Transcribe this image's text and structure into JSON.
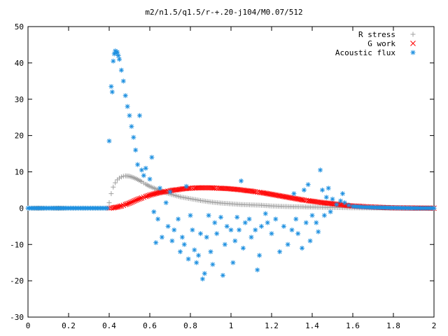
{
  "chart_data": {
    "type": "scatter",
    "title": "m2/n1.5/q1.5/r-+.20-j104/M0.07/512",
    "xlabel": "",
    "ylabel": "",
    "xlim": [
      0,
      2
    ],
    "ylim": [
      -30,
      50
    ],
    "x_ticks": [
      "0",
      "0.2",
      "0.4",
      "0.6",
      "0.8",
      "1",
      "1.2",
      "1.4",
      "1.6",
      "1.8",
      "2"
    ],
    "y_ticks": [
      "-30",
      "-20",
      "-10",
      "0",
      "10",
      "20",
      "30",
      "40",
      "50"
    ],
    "legend_position": "top-right",
    "grid": false,
    "series": [
      {
        "name": "R stress",
        "marker": "+",
        "color": "#a0a0a0",
        "points": [
          [
            0.0,
            0
          ],
          [
            0.1,
            0
          ],
          [
            0.2,
            0
          ],
          [
            0.3,
            0
          ],
          [
            0.39,
            0
          ],
          [
            0.4,
            1.5
          ],
          [
            0.41,
            4
          ],
          [
            0.42,
            5.8
          ],
          [
            0.43,
            7
          ],
          [
            0.44,
            7.8
          ],
          [
            0.45,
            8.3
          ],
          [
            0.46,
            8.6
          ],
          [
            0.47,
            8.8
          ],
          [
            0.48,
            8.9
          ],
          [
            0.5,
            8.8
          ],
          [
            0.52,
            8.4
          ],
          [
            0.54,
            7.9
          ],
          [
            0.56,
            7.3
          ],
          [
            0.58,
            6.6
          ],
          [
            0.6,
            6
          ],
          [
            0.63,
            5.3
          ],
          [
            0.66,
            4.6
          ],
          [
            0.7,
            3.9
          ],
          [
            0.75,
            3.1
          ],
          [
            0.8,
            2.6
          ],
          [
            0.85,
            2.1
          ],
          [
            0.9,
            1.7
          ],
          [
            0.95,
            1.4
          ],
          [
            1.0,
            1.2
          ],
          [
            1.05,
            1
          ],
          [
            1.1,
            0.9
          ],
          [
            1.15,
            0.8
          ],
          [
            1.2,
            0.6
          ],
          [
            1.25,
            0.5
          ],
          [
            1.3,
            0.4
          ],
          [
            1.35,
            0.35
          ],
          [
            1.4,
            0.3
          ],
          [
            1.45,
            0.25
          ],
          [
            1.5,
            0.2
          ],
          [
            1.55,
            0.15
          ],
          [
            1.6,
            0.1
          ],
          [
            1.7,
            0.05
          ],
          [
            1.8,
            0.02
          ],
          [
            1.9,
            0
          ],
          [
            2.0,
            0
          ]
        ]
      },
      {
        "name": "G work",
        "marker": "x",
        "color": "#ff0000",
        "points": [
          [
            0.4,
            0
          ],
          [
            0.42,
            0.1
          ],
          [
            0.44,
            0.3
          ],
          [
            0.46,
            0.6
          ],
          [
            0.48,
            1
          ],
          [
            0.5,
            1.4
          ],
          [
            0.52,
            1.9
          ],
          [
            0.54,
            2.4
          ],
          [
            0.56,
            2.8
          ],
          [
            0.58,
            3.2
          ],
          [
            0.6,
            3.6
          ],
          [
            0.62,
            3.9
          ],
          [
            0.64,
            4.2
          ],
          [
            0.66,
            4.4
          ],
          [
            0.68,
            4.6
          ],
          [
            0.7,
            4.8
          ],
          [
            0.72,
            5
          ],
          [
            0.74,
            5.1
          ],
          [
            0.76,
            5.3
          ],
          [
            0.78,
            5.4
          ],
          [
            0.8,
            5.5
          ],
          [
            0.82,
            5.55
          ],
          [
            0.84,
            5.6
          ],
          [
            0.86,
            5.6
          ],
          [
            0.88,
            5.6
          ],
          [
            0.9,
            5.6
          ],
          [
            0.92,
            5.55
          ],
          [
            0.94,
            5.5
          ],
          [
            0.96,
            5.45
          ],
          [
            0.98,
            5.4
          ],
          [
            1.0,
            5.3
          ],
          [
            1.02,
            5.2
          ],
          [
            1.04,
            5.1
          ],
          [
            1.06,
            4.95
          ],
          [
            1.08,
            4.8
          ],
          [
            1.1,
            4.7
          ],
          [
            1.12,
            4.5
          ],
          [
            1.14,
            4.35
          ],
          [
            1.16,
            4.2
          ],
          [
            1.18,
            4
          ],
          [
            1.2,
            3.8
          ],
          [
            1.22,
            3.6
          ],
          [
            1.24,
            3.4
          ],
          [
            1.26,
            3.2
          ],
          [
            1.28,
            3
          ],
          [
            1.3,
            2.8
          ],
          [
            1.32,
            2.6
          ],
          [
            1.34,
            2.4
          ],
          [
            1.36,
            2.2
          ],
          [
            1.38,
            2.05
          ],
          [
            1.4,
            1.9
          ],
          [
            1.42,
            1.75
          ],
          [
            1.44,
            1.6
          ],
          [
            1.46,
            1.45
          ],
          [
            1.48,
            1.35
          ],
          [
            1.5,
            1.2
          ],
          [
            1.52,
            1.1
          ],
          [
            1.54,
            0.95
          ],
          [
            1.56,
            0.85
          ],
          [
            1.58,
            0.7
          ],
          [
            1.6,
            0.6
          ],
          [
            1.65,
            0.45
          ],
          [
            1.7,
            0.3
          ],
          [
            1.75,
            0.2
          ],
          [
            1.8,
            0.1
          ],
          [
            1.9,
            0.05
          ],
          [
            2.0,
            0
          ]
        ]
      },
      {
        "name": "Acoustic flux",
        "marker": "*",
        "color": "#1e90e0",
        "points": [
          [
            0.0,
            0
          ],
          [
            0.05,
            0
          ],
          [
            0.1,
            0
          ],
          [
            0.15,
            0
          ],
          [
            0.2,
            0
          ],
          [
            0.25,
            0
          ],
          [
            0.3,
            0
          ],
          [
            0.35,
            0
          ],
          [
            0.39,
            0
          ],
          [
            0.4,
            18.5
          ],
          [
            0.41,
            33.5
          ],
          [
            0.415,
            32
          ],
          [
            0.42,
            40.5
          ],
          [
            0.425,
            42.5
          ],
          [
            0.43,
            43.3
          ],
          [
            0.435,
            42.8
          ],
          [
            0.44,
            43
          ],
          [
            0.445,
            42
          ],
          [
            0.45,
            41
          ],
          [
            0.46,
            38
          ],
          [
            0.47,
            35
          ],
          [
            0.48,
            31
          ],
          [
            0.49,
            28
          ],
          [
            0.5,
            25.5
          ],
          [
            0.51,
            22.5
          ],
          [
            0.52,
            19.5
          ],
          [
            0.53,
            16
          ],
          [
            0.54,
            12
          ],
          [
            0.55,
            25.5
          ],
          [
            0.56,
            10.5
          ],
          [
            0.57,
            9
          ],
          [
            0.58,
            11
          ],
          [
            0.6,
            8
          ],
          [
            0.61,
            14
          ],
          [
            0.62,
            -1
          ],
          [
            0.63,
            -9.5
          ],
          [
            0.64,
            -3
          ],
          [
            0.65,
            5.5
          ],
          [
            0.66,
            -8
          ],
          [
            0.68,
            1.5
          ],
          [
            0.69,
            -5
          ],
          [
            0.7,
            4.5
          ],
          [
            0.71,
            -9
          ],
          [
            0.72,
            -6
          ],
          [
            0.74,
            -3
          ],
          [
            0.75,
            -12
          ],
          [
            0.76,
            -8
          ],
          [
            0.77,
            -10
          ],
          [
            0.78,
            6
          ],
          [
            0.79,
            -14
          ],
          [
            0.8,
            -2
          ],
          [
            0.81,
            -6
          ],
          [
            0.82,
            -11.5
          ],
          [
            0.83,
            -15
          ],
          [
            0.84,
            -13
          ],
          [
            0.85,
            -7
          ],
          [
            0.86,
            -19.5
          ],
          [
            0.87,
            -18
          ],
          [
            0.88,
            -8
          ],
          [
            0.89,
            -2
          ],
          [
            0.9,
            -12
          ],
          [
            0.91,
            -15.5
          ],
          [
            0.92,
            -4
          ],
          [
            0.93,
            -7
          ],
          [
            0.95,
            -2.5
          ],
          [
            0.96,
            -18.5
          ],
          [
            0.97,
            -10
          ],
          [
            0.98,
            -5
          ],
          [
            1.0,
            -6
          ],
          [
            1.01,
            -15
          ],
          [
            1.02,
            -9
          ],
          [
            1.03,
            -2.5
          ],
          [
            1.04,
            -6
          ],
          [
            1.05,
            7.5
          ],
          [
            1.06,
            -11
          ],
          [
            1.07,
            -4
          ],
          [
            1.09,
            -3
          ],
          [
            1.1,
            -8
          ],
          [
            1.12,
            -6
          ],
          [
            1.13,
            -17
          ],
          [
            1.14,
            -13
          ],
          [
            1.15,
            -5
          ],
          [
            1.17,
            -1.5
          ],
          [
            1.18,
            -4
          ],
          [
            1.2,
            -7
          ],
          [
            1.22,
            -3
          ],
          [
            1.24,
            -12
          ],
          [
            1.26,
            -5
          ],
          [
            1.28,
            -10
          ],
          [
            1.3,
            -6
          ],
          [
            1.31,
            4
          ],
          [
            1.32,
            -3
          ],
          [
            1.33,
            -7
          ],
          [
            1.35,
            -11
          ],
          [
            1.36,
            5
          ],
          [
            1.37,
            -4
          ],
          [
            1.38,
            6.5
          ],
          [
            1.39,
            -9
          ],
          [
            1.4,
            -2
          ],
          [
            1.42,
            -4
          ],
          [
            1.43,
            -6.5
          ],
          [
            1.44,
            10.5
          ],
          [
            1.45,
            5
          ],
          [
            1.46,
            -2
          ],
          [
            1.47,
            3
          ],
          [
            1.48,
            5.5
          ],
          [
            1.49,
            -1
          ],
          [
            1.5,
            2.5
          ],
          [
            1.52,
            1
          ],
          [
            1.54,
            2
          ],
          [
            1.55,
            4
          ],
          [
            1.56,
            1.5
          ],
          [
            1.58,
            0.8
          ],
          [
            1.6,
            0.5
          ],
          [
            1.65,
            0.3
          ],
          [
            1.7,
            0.2
          ],
          [
            1.75,
            0.15
          ],
          [
            1.8,
            0.1
          ],
          [
            1.85,
            0.05
          ],
          [
            1.9,
            0
          ],
          [
            1.95,
            0
          ],
          [
            2.0,
            0
          ]
        ]
      }
    ]
  }
}
